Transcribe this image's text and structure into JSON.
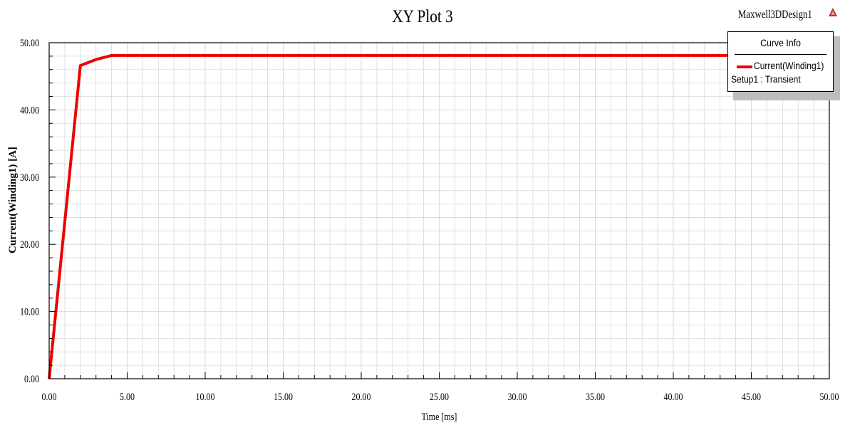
{
  "header": {
    "design_name": "Maxwell3DDesign1",
    "logo_icon": "ansys-triangle-icon"
  },
  "legend": {
    "title": "Curve Info",
    "series_label": "Current(Winding1)",
    "setup_label": "Setup1 : Transient"
  },
  "colors": {
    "series": "#ee0000",
    "grid": "#d9d9d9",
    "axis": "#000000"
  },
  "chart_data": {
    "type": "line",
    "title": "XY Plot 3",
    "xlabel": "Time [ms]",
    "ylabel": "Current(Winding1) [A]",
    "xlim": [
      0,
      50
    ],
    "ylim": [
      0,
      50
    ],
    "x_ticks": [
      "0.00",
      "5.00",
      "10.00",
      "15.00",
      "20.00",
      "25.00",
      "30.00",
      "35.00",
      "40.00",
      "45.00",
      "50.00"
    ],
    "y_ticks": [
      "0.00",
      "10.00",
      "20.00",
      "30.00",
      "40.00",
      "50.00"
    ],
    "grid": true,
    "legend_position": "top-right",
    "series": [
      {
        "name": "Current(Winding1)",
        "x": [
          0,
          2,
          3,
          4,
          50
        ],
        "y": [
          0,
          46.6,
          47.5,
          48.1,
          48.1
        ]
      }
    ]
  }
}
